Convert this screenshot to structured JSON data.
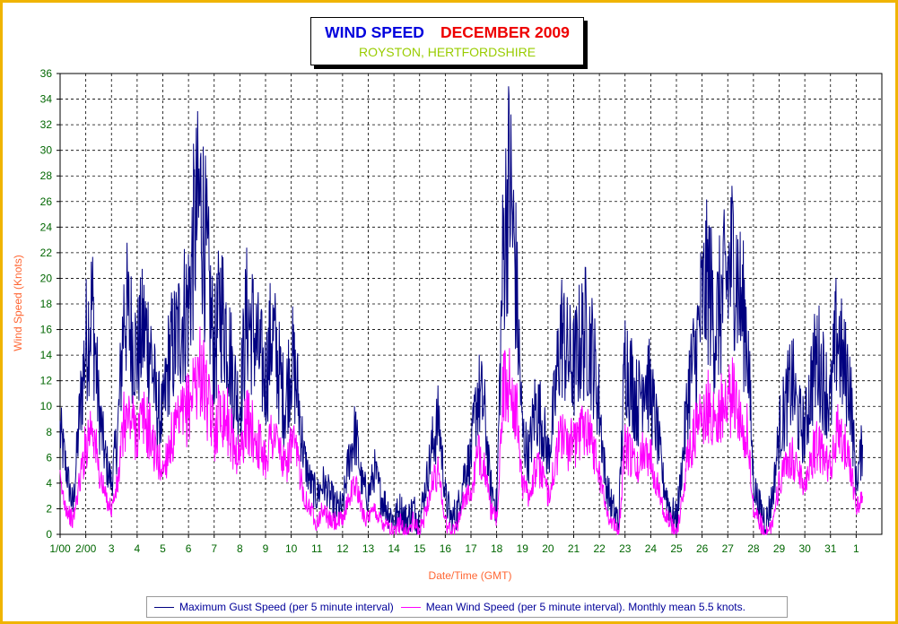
{
  "title": "WIND SPEED",
  "title_date": "DECEMBER 2009",
  "subtitle": "ROYSTON, HERTFORDSHIRE",
  "legend": {
    "gust": "Maximum Gust Speed (per 5 minute interval)",
    "mean": "Mean Wind Speed (per 5 minute interval). Monthly mean 5.5 knots."
  },
  "colors": {
    "gust": "#000080",
    "mean": "#ff00ff",
    "grid": "#000000",
    "frame": "#f0b400",
    "title": "#0000dd",
    "date": "#ee0000",
    "subtitle": "#99cc00",
    "axis_title": "#ff6633",
    "ticks": "#006600"
  },
  "chart_data": {
    "type": "line",
    "title": "WIND SPEED    DECEMBER 2009",
    "subtitle": "ROYSTON, HERTFORDSHIRE",
    "xlabel": "Date/Time (GMT)",
    "ylabel": "Wind Speed (Knots)",
    "ylim": [
      0,
      36
    ],
    "yticks": [
      0,
      2,
      4,
      6,
      8,
      10,
      12,
      14,
      16,
      18,
      20,
      22,
      24,
      26,
      28,
      30,
      32,
      34,
      36
    ],
    "xlim_days": [
      1,
      33
    ],
    "xtick_labels": [
      "1/00",
      "2/00",
      "3",
      "4",
      "5",
      "6",
      "7",
      "8",
      "9",
      "10",
      "11",
      "12",
      "13",
      "14",
      "15",
      "16",
      "17",
      "18",
      "19",
      "20",
      "21",
      "22",
      "23",
      "24",
      "25",
      "26",
      "27",
      "28",
      "29",
      "30",
      "31",
      "1"
    ],
    "grid": true,
    "legend_position": "bottom",
    "series": [
      {
        "name": "Maximum Gust Speed (per 5 minute interval)",
        "x": [
          1.0,
          1.25,
          1.5,
          1.75,
          2.0,
          2.25,
          2.5,
          2.75,
          3.0,
          3.25,
          3.5,
          3.75,
          4.0,
          4.25,
          4.5,
          4.75,
          5.0,
          5.25,
          5.5,
          5.75,
          6.0,
          6.25,
          6.5,
          6.75,
          7.0,
          7.25,
          7.5,
          7.75,
          8.0,
          8.25,
          8.5,
          8.75,
          9.0,
          9.25,
          9.5,
          9.75,
          10.0,
          10.25,
          10.5,
          10.75,
          11.0,
          11.25,
          11.5,
          11.75,
          12.0,
          12.25,
          12.5,
          12.75,
          13.0,
          13.25,
          13.5,
          13.75,
          14.0,
          14.25,
          14.5,
          14.75,
          15.0,
          15.25,
          15.5,
          15.75,
          16.0,
          16.25,
          16.5,
          16.75,
          17.0,
          17.25,
          17.5,
          17.75,
          18.0,
          18.25,
          18.5,
          18.75,
          19.0,
          19.25,
          19.5,
          19.75,
          20.0,
          20.25,
          20.5,
          20.75,
          21.0,
          21.25,
          21.5,
          21.75,
          22.0,
          22.25,
          22.5,
          22.75,
          23.0,
          23.25,
          23.5,
          23.75,
          24.0,
          24.25,
          24.5,
          24.75,
          25.0,
          25.25,
          25.5,
          25.75,
          26.0,
          26.25,
          26.5,
          26.75,
          27.0,
          27.25,
          27.5,
          27.75,
          28.0,
          28.25,
          28.5,
          28.75,
          29.0,
          29.25,
          29.5,
          29.75,
          30.0,
          30.25,
          30.5,
          30.75,
          31.0,
          31.25,
          31.5,
          31.75,
          32.0,
          32.25
        ],
        "y": [
          8,
          5,
          2,
          9,
          15,
          18,
          10,
          6,
          4,
          8,
          18,
          16,
          14,
          16,
          15,
          10,
          9,
          14,
          15,
          17,
          18,
          24,
          26,
          20,
          14,
          18,
          16,
          12,
          10,
          17,
          16,
          14,
          12,
          16,
          13,
          10,
          14,
          11,
          6,
          4,
          3,
          4,
          3,
          2,
          2,
          6,
          8,
          4,
          3,
          5,
          3,
          2,
          1,
          2,
          1,
          2,
          1,
          4,
          7,
          9,
          3,
          1,
          2,
          5,
          6,
          11,
          10,
          4,
          2,
          22,
          28,
          20,
          8,
          6,
          10,
          9,
          6,
          10,
          16,
          14,
          13,
          15,
          16,
          14,
          10,
          4,
          2,
          1,
          14,
          12,
          10,
          13,
          11,
          8,
          4,
          2,
          1,
          6,
          12,
          14,
          18,
          20,
          16,
          18,
          20,
          22,
          18,
          16,
          4,
          2,
          1,
          3,
          8,
          10,
          12,
          9,
          8,
          12,
          14,
          12,
          10,
          16,
          13,
          12,
          4,
          7
        ]
      },
      {
        "name": "Mean Wind Speed (per 5 minute interval). Monthly mean 5.5 knots.",
        "x": [
          1.0,
          1.25,
          1.5,
          1.75,
          2.0,
          2.25,
          2.5,
          2.75,
          3.0,
          3.25,
          3.5,
          3.75,
          4.0,
          4.25,
          4.5,
          4.75,
          5.0,
          5.25,
          5.5,
          5.75,
          6.0,
          6.25,
          6.5,
          6.75,
          7.0,
          7.25,
          7.5,
          7.75,
          8.0,
          8.25,
          8.5,
          8.75,
          9.0,
          9.25,
          9.5,
          9.75,
          10.0,
          10.25,
          10.5,
          10.75,
          11.0,
          11.25,
          11.5,
          11.75,
          12.0,
          12.25,
          12.5,
          12.75,
          13.0,
          13.25,
          13.5,
          13.75,
          14.0,
          14.25,
          14.5,
          14.75,
          15.0,
          15.25,
          15.5,
          15.75,
          16.0,
          16.25,
          16.5,
          16.75,
          17.0,
          17.25,
          17.5,
          17.75,
          18.0,
          18.25,
          18.5,
          18.75,
          19.0,
          19.25,
          19.5,
          19.75,
          20.0,
          20.25,
          20.5,
          20.75,
          21.0,
          21.25,
          21.5,
          21.75,
          22.0,
          22.25,
          22.5,
          22.75,
          23.0,
          23.25,
          23.5,
          23.75,
          24.0,
          24.25,
          24.5,
          24.75,
          25.0,
          25.25,
          25.5,
          25.75,
          26.0,
          26.25,
          26.5,
          26.75,
          27.0,
          27.25,
          27.5,
          27.75,
          28.0,
          28.25,
          28.5,
          28.75,
          29.0,
          29.25,
          29.5,
          29.75,
          30.0,
          30.25,
          30.5,
          30.75,
          31.0,
          31.25,
          31.5,
          31.75,
          32.0,
          32.25
        ],
        "y": [
          4,
          2,
          1,
          4,
          7,
          9,
          5,
          3,
          2,
          4,
          9,
          9,
          8,
          9,
          8,
          6,
          5,
          7,
          8,
          9,
          10,
          12,
          13,
          10,
          8,
          10,
          9,
          7,
          6,
          9,
          8,
          7,
          6,
          8,
          7,
          5,
          7,
          6,
          3,
          2,
          1,
          2,
          1,
          1,
          1,
          3,
          4,
          2,
          1,
          2,
          1,
          1,
          0,
          1,
          0,
          1,
          0,
          2,
          4,
          5,
          1,
          0,
          1,
          3,
          3,
          6,
          6,
          2,
          1,
          11,
          12,
          10,
          4,
          3,
          5,
          5,
          3,
          5,
          8,
          7,
          7,
          8,
          9,
          7,
          5,
          2,
          1,
          0,
          7,
          6,
          5,
          7,
          6,
          4,
          2,
          1,
          0,
          3,
          7,
          8,
          9,
          10,
          9,
          10,
          10,
          11,
          9,
          8,
          2,
          1,
          0,
          1,
          4,
          5,
          6,
          5,
          4,
          6,
          7,
          6,
          5,
          8,
          7,
          6,
          2,
          3
        ]
      }
    ]
  }
}
